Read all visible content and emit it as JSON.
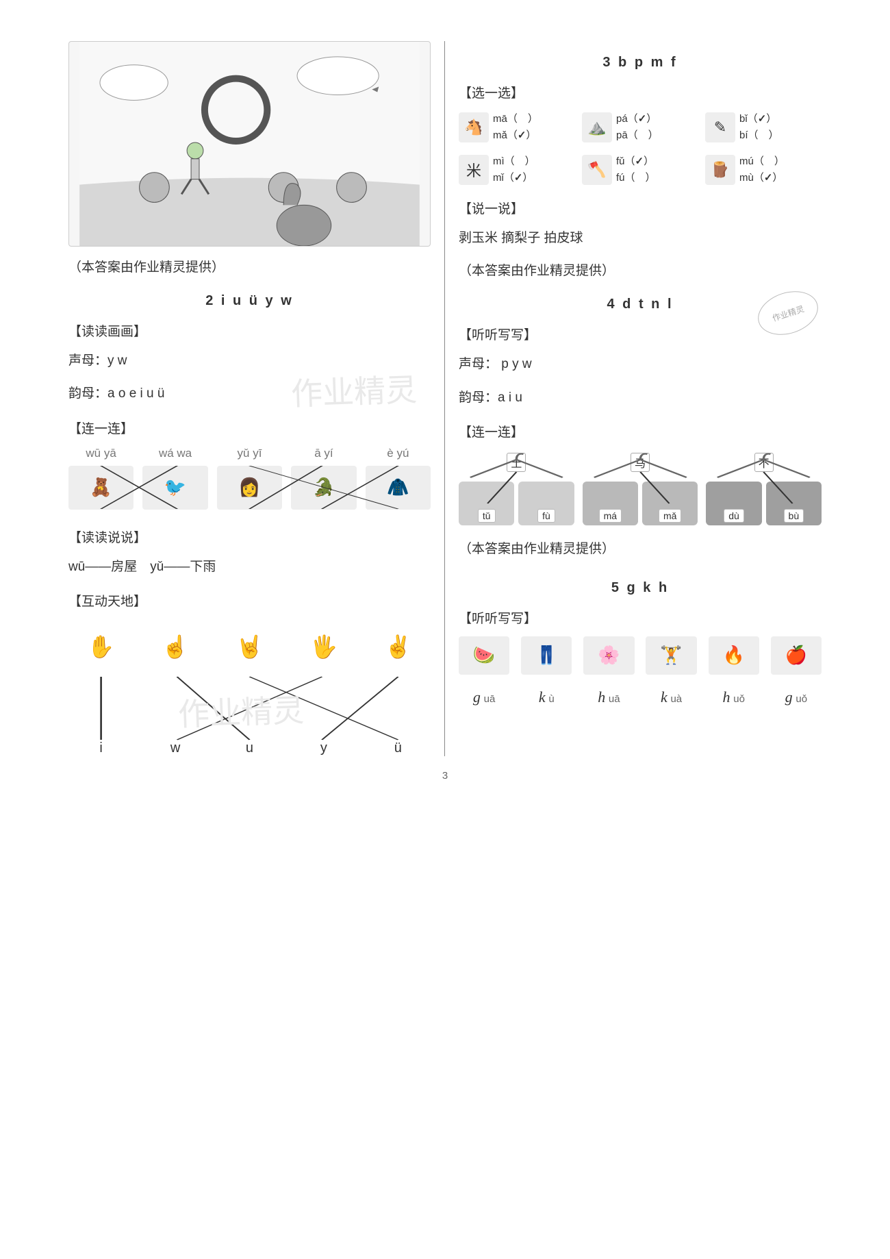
{
  "page_number": "3",
  "left": {
    "caption1": "（本答案由作业精灵提供）",
    "section2_title": "2 i u ü y w",
    "sub_read_draw": "【读读画画】",
    "shengmu_label": "声母：y w",
    "yunmu_label": "韵母：a o e i u ü",
    "watermark": "作业精灵",
    "sub_lianlian": "【连一连】",
    "match_labels": [
      "wū yā",
      "wá wa",
      "yǔ yī",
      "ā yí",
      "è yú"
    ],
    "sub_readspeak": "【读读说说】",
    "readspeak_line": "wū——房屋　yǔ——下雨",
    "sub_hudong": "【互动天地】",
    "hand_letters": [
      "i",
      "w",
      "u",
      "y",
      "ü"
    ]
  },
  "right": {
    "section3_title": "3 b p m f",
    "sub_choose": "【选一选】",
    "choose": [
      {
        "icon": "🐴",
        "opts": [
          [
            "mā",
            false
          ],
          [
            "mǎ",
            true
          ]
        ]
      },
      {
        "icon": "⛰️",
        "opts": [
          [
            "pá",
            true
          ],
          [
            "pā",
            false
          ]
        ]
      },
      {
        "icon": "✎",
        "opts": [
          [
            "bǐ",
            true
          ],
          [
            "bí",
            false
          ]
        ]
      },
      {
        "icon": "米",
        "opts": [
          [
            "mì",
            false
          ],
          [
            "mǐ",
            true
          ]
        ]
      },
      {
        "icon": "🪓",
        "opts": [
          [
            "fǔ",
            true
          ],
          [
            "fú",
            false
          ]
        ]
      },
      {
        "icon": "🪵",
        "opts": [
          [
            "mú",
            false
          ],
          [
            "mù",
            true
          ]
        ]
      }
    ],
    "sub_speak": "【说一说】",
    "speak_line": "剥玉米  摘梨子  拍皮球",
    "caption2": "（本答案由作业精灵提供）",
    "section4_title": "4 d t n l",
    "seal_text": "作业精灵",
    "sub_listen4": "【听听写写】",
    "shengmu4": "声母： p y w",
    "yunmu4": "韵母：a i u",
    "sub_lian4": "【连一连】",
    "hangers": [
      {
        "char": "土",
        "clothes": [
          [
            "tǔ",
            true
          ],
          [
            "fù",
            false
          ]
        ],
        "color": "#cfcfcf"
      },
      {
        "char": "马",
        "clothes": [
          [
            "má",
            false
          ],
          [
            "mǎ",
            true
          ]
        ],
        "color": "#b9b9b9"
      },
      {
        "char": "不",
        "clothes": [
          [
            "dù",
            false
          ],
          [
            "bù",
            true
          ]
        ],
        "color": "#9f9f9f"
      }
    ],
    "caption3": "（本答案由作业精灵提供）",
    "section5_title": "5 g k h",
    "sub_listen5": "【听听写写】",
    "listen_icons": [
      "🍉",
      "👖",
      "🌸",
      "🏋️",
      "🔥",
      "🍎"
    ],
    "listen_answers": [
      [
        "g",
        "uā"
      ],
      [
        "k",
        "ù"
      ],
      [
        "h",
        "uā"
      ],
      [
        "k",
        "uà"
      ],
      [
        "h",
        "uǒ"
      ],
      [
        "g",
        "uǒ"
      ]
    ]
  },
  "colors": {
    "text": "#333333",
    "muted": "#777777",
    "border": "#888888",
    "bg": "#ffffff",
    "watermark": "#e9e9e9"
  }
}
